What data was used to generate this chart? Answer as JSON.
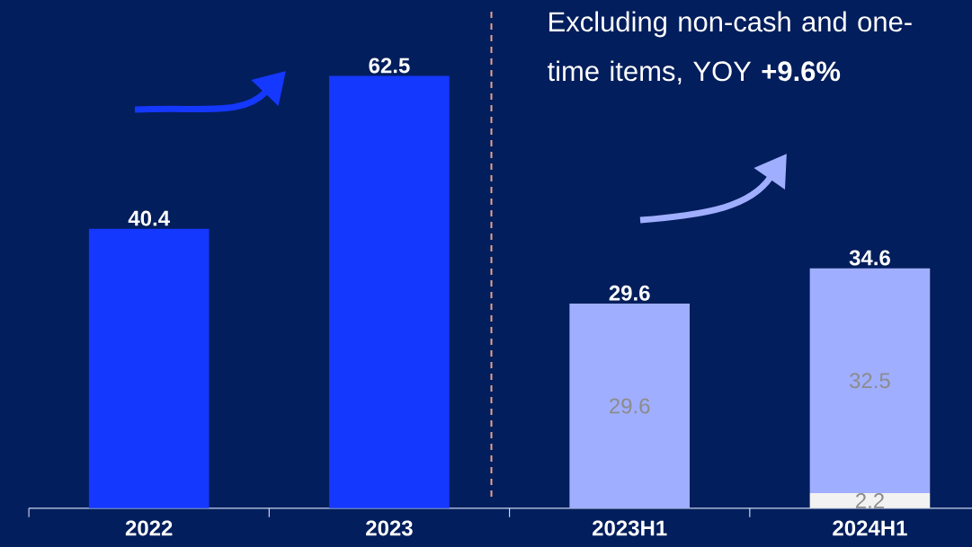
{
  "chart_data": {
    "type": "bar",
    "stacked": true,
    "categories": [
      "2022",
      "2023",
      "2023H1",
      "2024H1"
    ],
    "series": [
      {
        "color": "#1538ff",
        "values": [
          40.4,
          62.5,
          null,
          null
        ]
      },
      {
        "color": "#f2f2f2",
        "values": [
          null,
          null,
          null,
          2.2
        ],
        "value_labels": [
          null,
          null,
          null,
          "2.2"
        ]
      },
      {
        "color": "#a0aeff",
        "values": [
          null,
          null,
          29.6,
          32.5
        ],
        "value_labels": [
          null,
          null,
          "29.6",
          "32.5"
        ]
      }
    ],
    "totals": [
      "40.4",
      "62.5",
      "29.6",
      "34.6"
    ],
    "annotations": [
      "Excluding non-cash and one-time items, YOY **+9.6%**"
    ]
  }
}
